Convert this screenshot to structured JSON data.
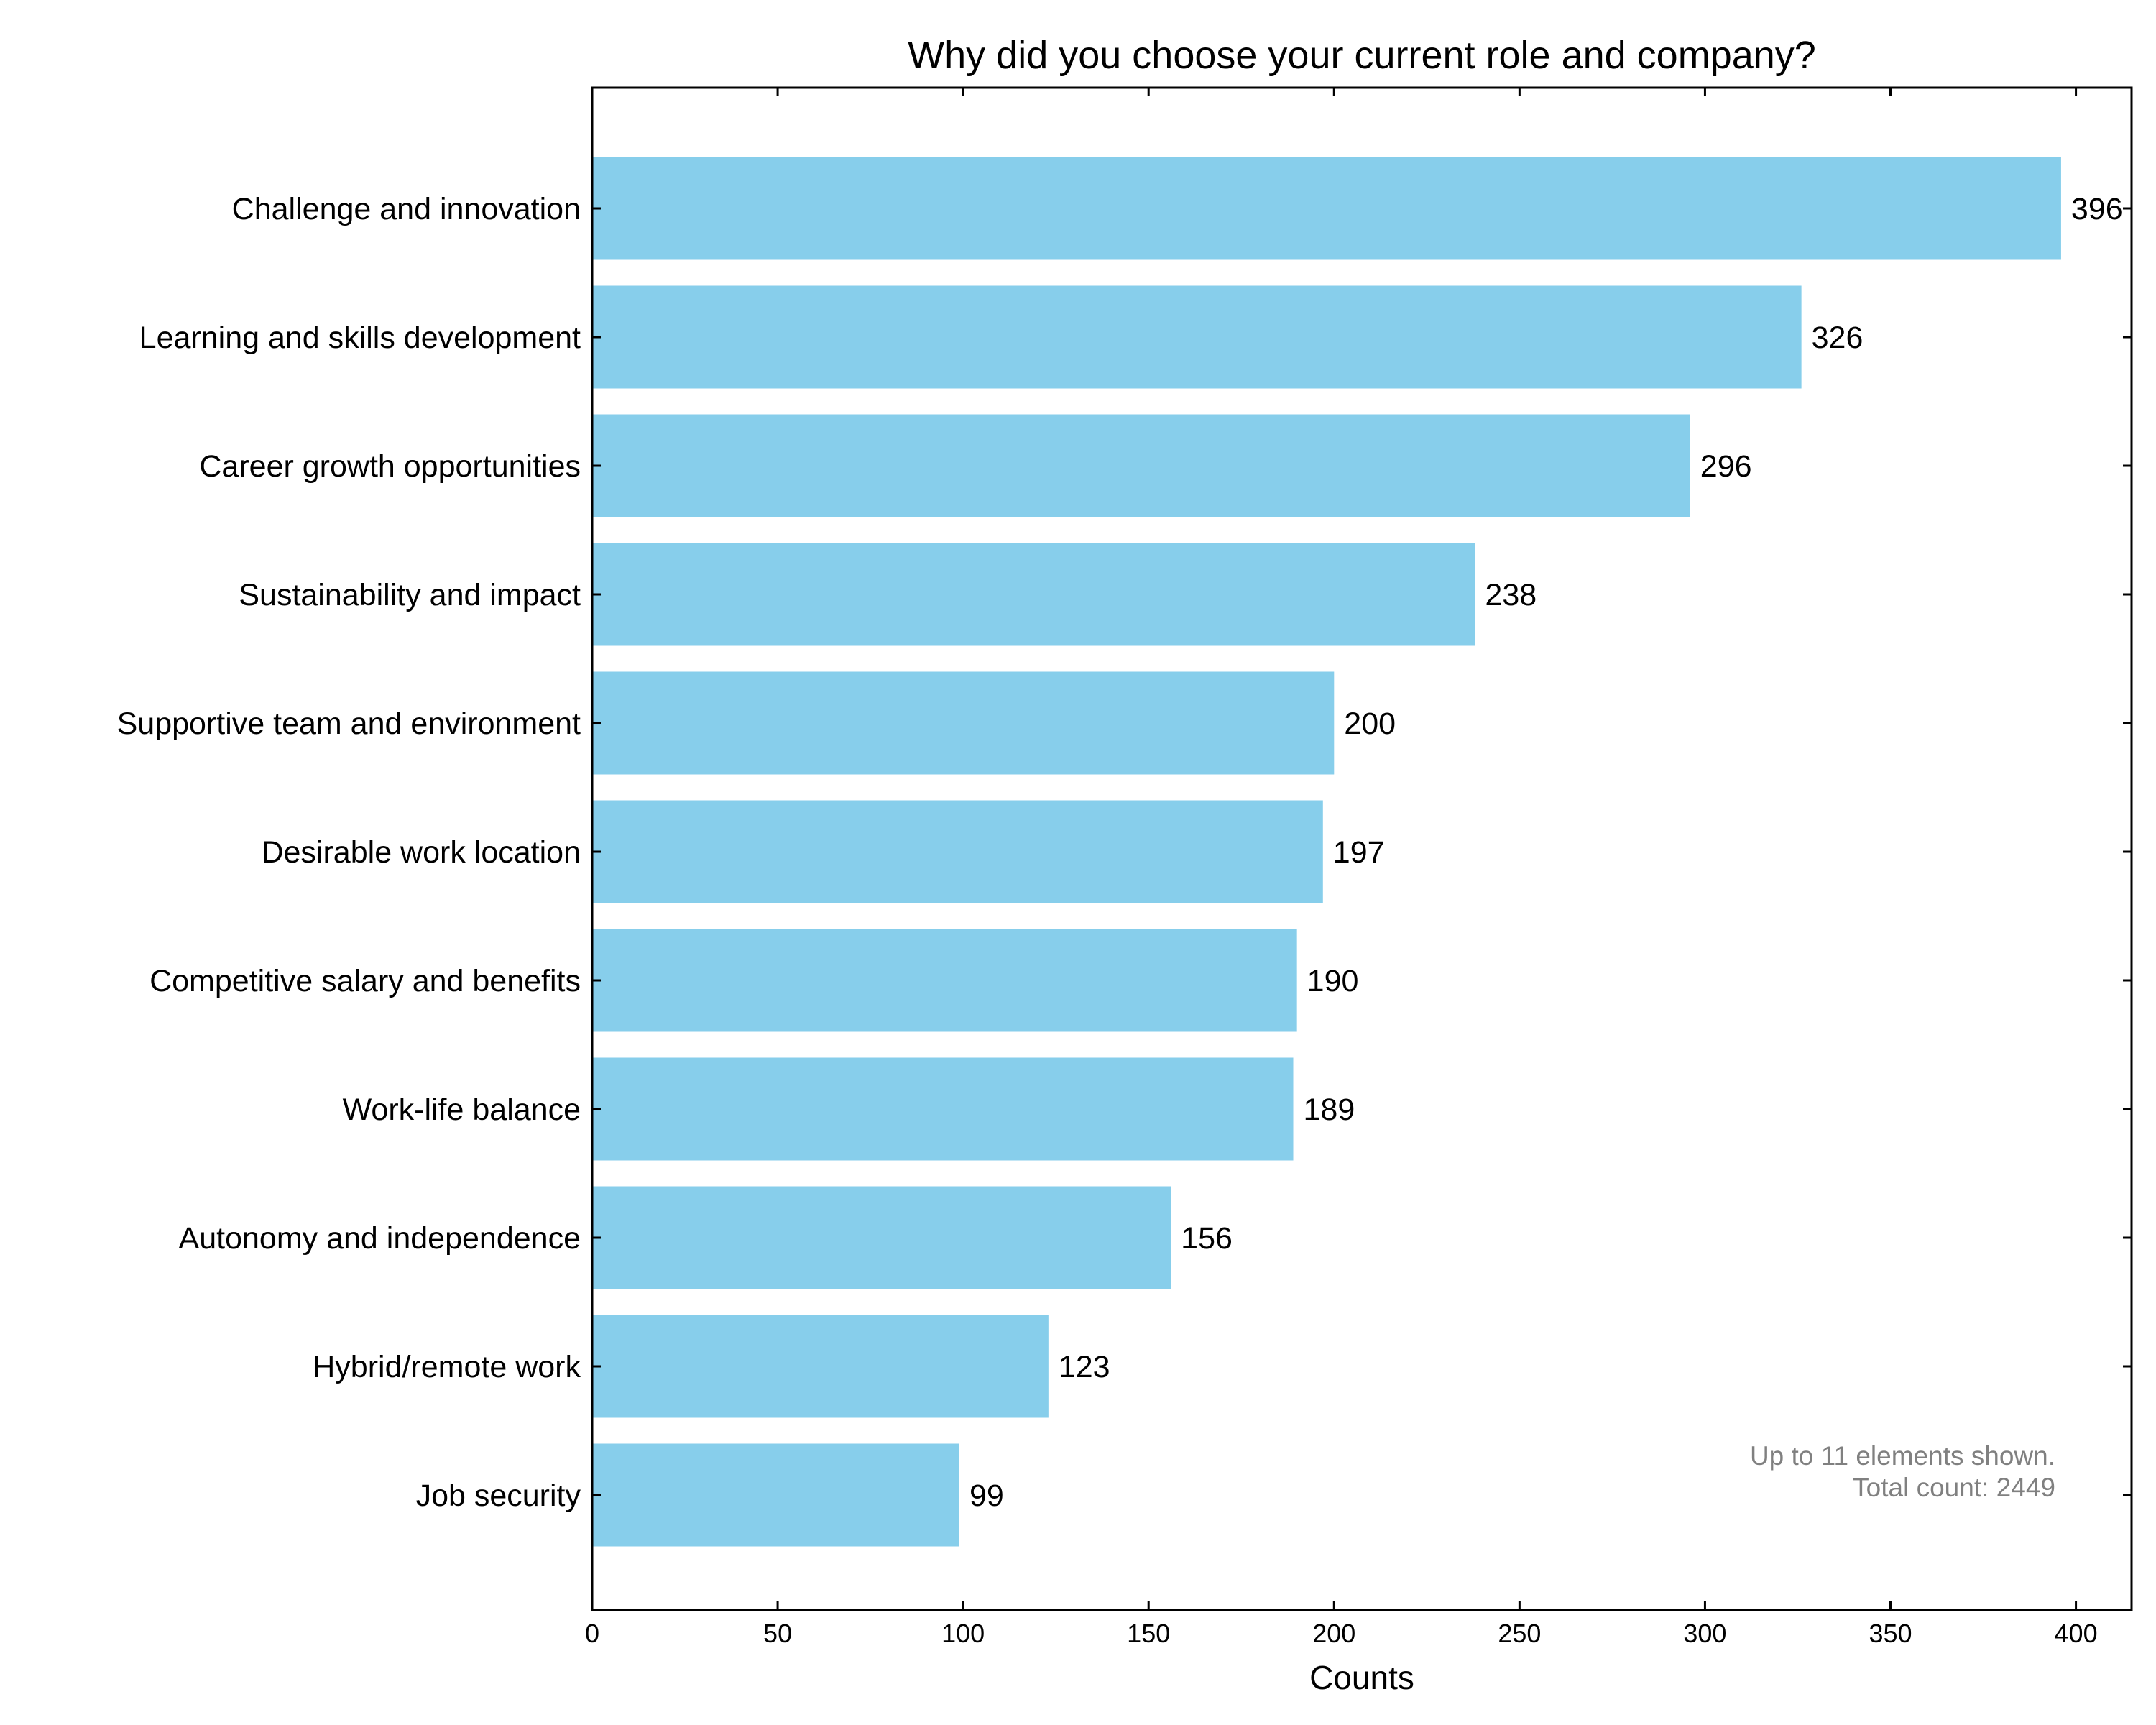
{
  "chart_data": {
    "type": "bar",
    "orientation": "horizontal",
    "title": "Why did you choose your current role and company?",
    "xlabel": "Counts",
    "ylabel": "",
    "xlim": [
      0,
      415
    ],
    "xticks": [
      0,
      50,
      100,
      150,
      200,
      250,
      300,
      350,
      400
    ],
    "categories": [
      "Challenge and innovation",
      "Learning and skills development",
      "Career growth opportunities",
      "Sustainability and impact",
      "Supportive team and environment",
      "Desirable work location",
      "Competitive salary and benefits",
      "Work-life balance",
      "Autonomy and independence",
      "Hybrid/remote work",
      "Job security"
    ],
    "values": [
      396,
      326,
      296,
      238,
      200,
      197,
      190,
      189,
      156,
      123,
      99
    ],
    "bar_color": "#87CEEB",
    "grid": false,
    "annotation": {
      "line1": "Up to 11 elements shown.",
      "line2": "Total count: 2449",
      "position": "bottom-right",
      "color": "#808080"
    }
  }
}
